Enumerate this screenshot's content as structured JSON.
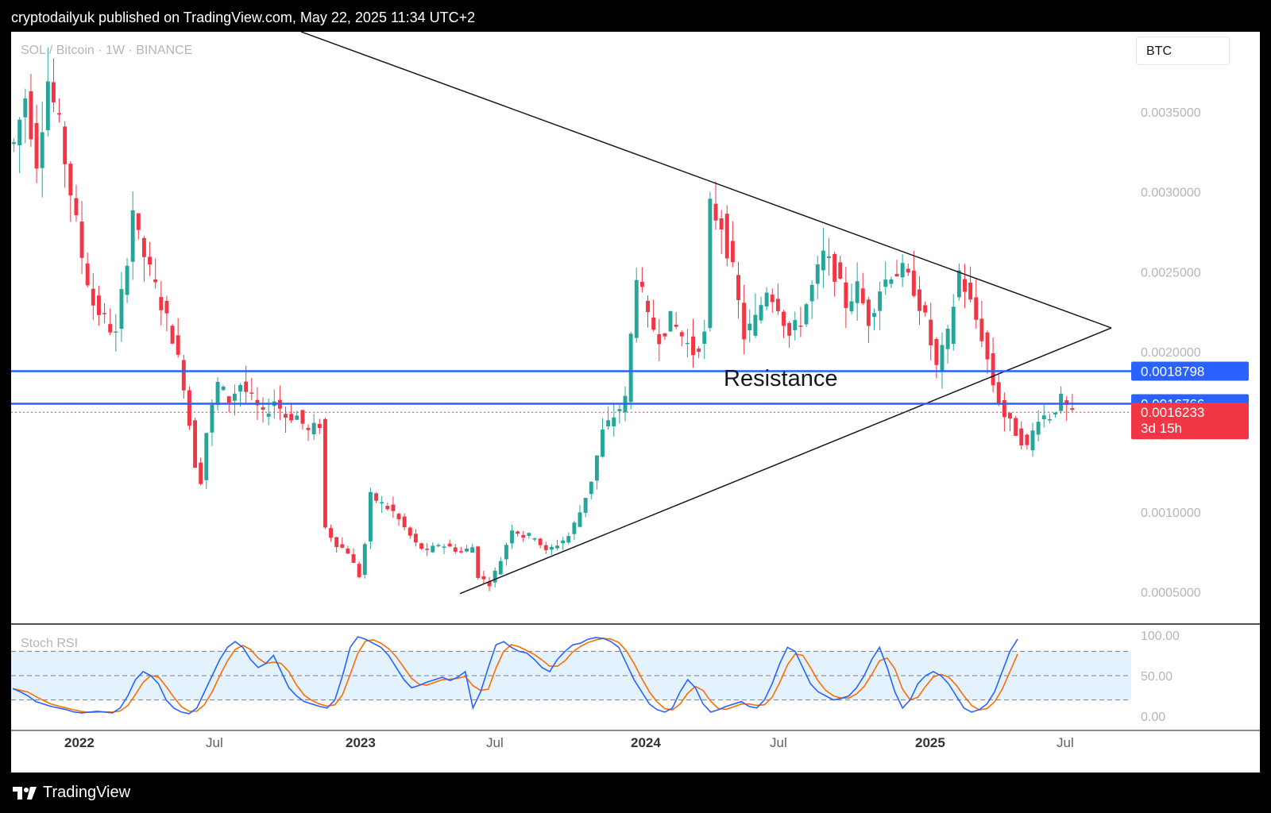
{
  "header": {
    "text": "cryptodailyuk published on TradingView.com, May 22, 2025 11:34 UTC+2"
  },
  "symbol": {
    "label": "SOL / Bitcoin · 1W · BINANCE"
  },
  "currency": "BTC",
  "footer": {
    "brand": "TradingView"
  },
  "colors": {
    "up": "#26a69a",
    "down": "#f23645",
    "line_blue": "#2962ff",
    "stoch_k": "#2962ff",
    "stoch_d": "#ff6d00",
    "band": "#e3f2fd"
  },
  "annotation": {
    "text": "Resistance"
  },
  "chart_data": {
    "type": "candlestick",
    "price_axis": {
      "ticks": [
        "0.0035000",
        "0.0030000",
        "0.0025000",
        "0.0020000",
        "0.0010000",
        "0.0005000"
      ],
      "ylim": [
        0.0003,
        0.004
      ]
    },
    "time_axis": {
      "labels": [
        {
          "text": "2022",
          "year": true
        },
        {
          "text": "Jul",
          "year": false
        },
        {
          "text": "2023",
          "year": true
        },
        {
          "text": "Jul",
          "year": false
        },
        {
          "text": "2024",
          "year": true
        },
        {
          "text": "Jul",
          "year": false
        },
        {
          "text": "2025",
          "year": true
        },
        {
          "text": "Jul",
          "year": false
        }
      ]
    },
    "horizontal_levels": [
      {
        "value": 0.0018798,
        "label": "0.0018798",
        "color": "#2962ff"
      },
      {
        "value": 0.0016766,
        "label": "0.0016766",
        "color": "#2962ff"
      }
    ],
    "last_price": {
      "value": 0.0016233,
      "label": "0.0016233",
      "countdown": "3d 15h",
      "color": "#f23645"
    },
    "trendlines": [
      {
        "name": "descending",
        "from": {
          "t": 0.15,
          "price": 0.004
        },
        "to": {
          "t": 1.0,
          "price": 0.00215
        }
      },
      {
        "name": "ascending",
        "from": {
          "t": 0.0,
          "price": 0.00049
        },
        "to": {
          "t": 1.0,
          "price": 0.00215
        }
      }
    ],
    "trend_segment_x": [
      [
        0.4,
        1.0
      ],
      [
        0.41,
        1.0
      ]
    ],
    "price_path": [
      [
        0,
        0.0033
      ],
      [
        2,
        0.0036
      ],
      [
        4,
        0.0032
      ],
      [
        6,
        0.0037
      ],
      [
        8,
        0.0034
      ],
      [
        10,
        0.003
      ],
      [
        12,
        0.0026
      ],
      [
        14,
        0.0023
      ],
      [
        16,
        0.0022
      ],
      [
        18,
        0.0021
      ],
      [
        20,
        0.0026
      ],
      [
        21,
        0.0029
      ],
      [
        22,
        0.0027
      ],
      [
        24,
        0.0025
      ],
      [
        26,
        0.0023
      ],
      [
        28,
        0.0021
      ],
      [
        30,
        0.0018
      ],
      [
        32,
        0.0013
      ],
      [
        33,
        0.0012
      ],
      [
        34,
        0.0015
      ],
      [
        36,
        0.0018
      ],
      [
        38,
        0.0017
      ],
      [
        40,
        0.0018
      ],
      [
        42,
        0.0017
      ],
      [
        44,
        0.0016
      ],
      [
        46,
        0.0017
      ],
      [
        48,
        0.0016
      ],
      [
        50,
        0.0016
      ],
      [
        52,
        0.0015
      ],
      [
        54,
        0.00155
      ],
      [
        55,
        0.0009
      ],
      [
        57,
        0.0008
      ],
      [
        59,
        0.00075
      ],
      [
        61,
        0.0006
      ],
      [
        62,
        0.0008
      ],
      [
        63,
        0.0011
      ],
      [
        65,
        0.00105
      ],
      [
        67,
        0.001
      ],
      [
        69,
        0.0009
      ],
      [
        71,
        0.0008
      ],
      [
        73,
        0.00075
      ],
      [
        75,
        0.0008
      ],
      [
        77,
        0.00078
      ],
      [
        79,
        0.00075
      ],
      [
        81,
        0.00078
      ],
      [
        82,
        0.0006
      ],
      [
        84,
        0.00055
      ],
      [
        86,
        0.0007
      ],
      [
        88,
        0.0009
      ],
      [
        90,
        0.00085
      ],
      [
        92,
        0.00085
      ],
      [
        94,
        0.00075
      ],
      [
        96,
        0.0008
      ],
      [
        98,
        0.00085
      ],
      [
        100,
        0.001
      ],
      [
        102,
        0.0012
      ],
      [
        104,
        0.0015
      ],
      [
        106,
        0.0016
      ],
      [
        108,
        0.0017
      ],
      [
        110,
        0.0025
      ],
      [
        112,
        0.0022
      ],
      [
        114,
        0.0021
      ],
      [
        116,
        0.0022
      ],
      [
        118,
        0.0021
      ],
      [
        120,
        0.002
      ],
      [
        122,
        0.0021
      ],
      [
        123,
        0.0029
      ],
      [
        125,
        0.0028
      ],
      [
        127,
        0.0025
      ],
      [
        129,
        0.0021
      ],
      [
        131,
        0.0022
      ],
      [
        133,
        0.0024
      ],
      [
        135,
        0.0023
      ],
      [
        137,
        0.0021
      ],
      [
        139,
        0.0022
      ],
      [
        141,
        0.0024
      ],
      [
        143,
        0.0026
      ],
      [
        145,
        0.0025
      ],
      [
        147,
        0.0023
      ],
      [
        149,
        0.0024
      ],
      [
        151,
        0.0022
      ],
      [
        153,
        0.0024
      ],
      [
        155,
        0.0025
      ],
      [
        157,
        0.0025
      ],
      [
        159,
        0.0024
      ],
      [
        161,
        0.0022
      ],
      [
        163,
        0.0019
      ],
      [
        165,
        0.0021
      ],
      [
        167,
        0.0025
      ],
      [
        169,
        0.0023
      ],
      [
        171,
        0.0021
      ],
      [
        173,
        0.0018
      ],
      [
        175,
        0.0016
      ],
      [
        177,
        0.0015
      ],
      [
        179,
        0.0014
      ],
      [
        181,
        0.0016
      ],
      [
        183,
        0.0016
      ],
      [
        185,
        0.0017
      ],
      [
        187,
        0.0016
      ]
    ],
    "stoch_rsi": {
      "label": "Stoch RSI",
      "ticks": [
        "100.00",
        "50.00",
        "0.00"
      ],
      "levels": [
        80,
        50,
        20
      ],
      "k": [
        34,
        30,
        25,
        18,
        15,
        12,
        10,
        8,
        5,
        4,
        5,
        6,
        5,
        4,
        10,
        25,
        45,
        55,
        50,
        40,
        20,
        10,
        5,
        3,
        10,
        30,
        50,
        70,
        85,
        92,
        85,
        70,
        60,
        65,
        75,
        55,
        35,
        25,
        18,
        15,
        12,
        10,
        20,
        50,
        85,
        98,
        95,
        90,
        85,
        75,
        60,
        45,
        35,
        38,
        42,
        45,
        48,
        44,
        48,
        55,
        10,
        30,
        60,
        88,
        92,
        85,
        80,
        78,
        70,
        60,
        55,
        70,
        80,
        88,
        90,
        95,
        97,
        96,
        92,
        85,
        65,
        45,
        30,
        15,
        8,
        5,
        10,
        30,
        45,
        35,
        15,
        5,
        8,
        12,
        15,
        18,
        12,
        10,
        20,
        40,
        65,
        85,
        80,
        60,
        40,
        30,
        25,
        20,
        22,
        25,
        35,
        50,
        70,
        85,
        60,
        30,
        10,
        20,
        40,
        50,
        55,
        50,
        40,
        25,
        10,
        5,
        8,
        15,
        30,
        55,
        80,
        95
      ]
    }
  }
}
